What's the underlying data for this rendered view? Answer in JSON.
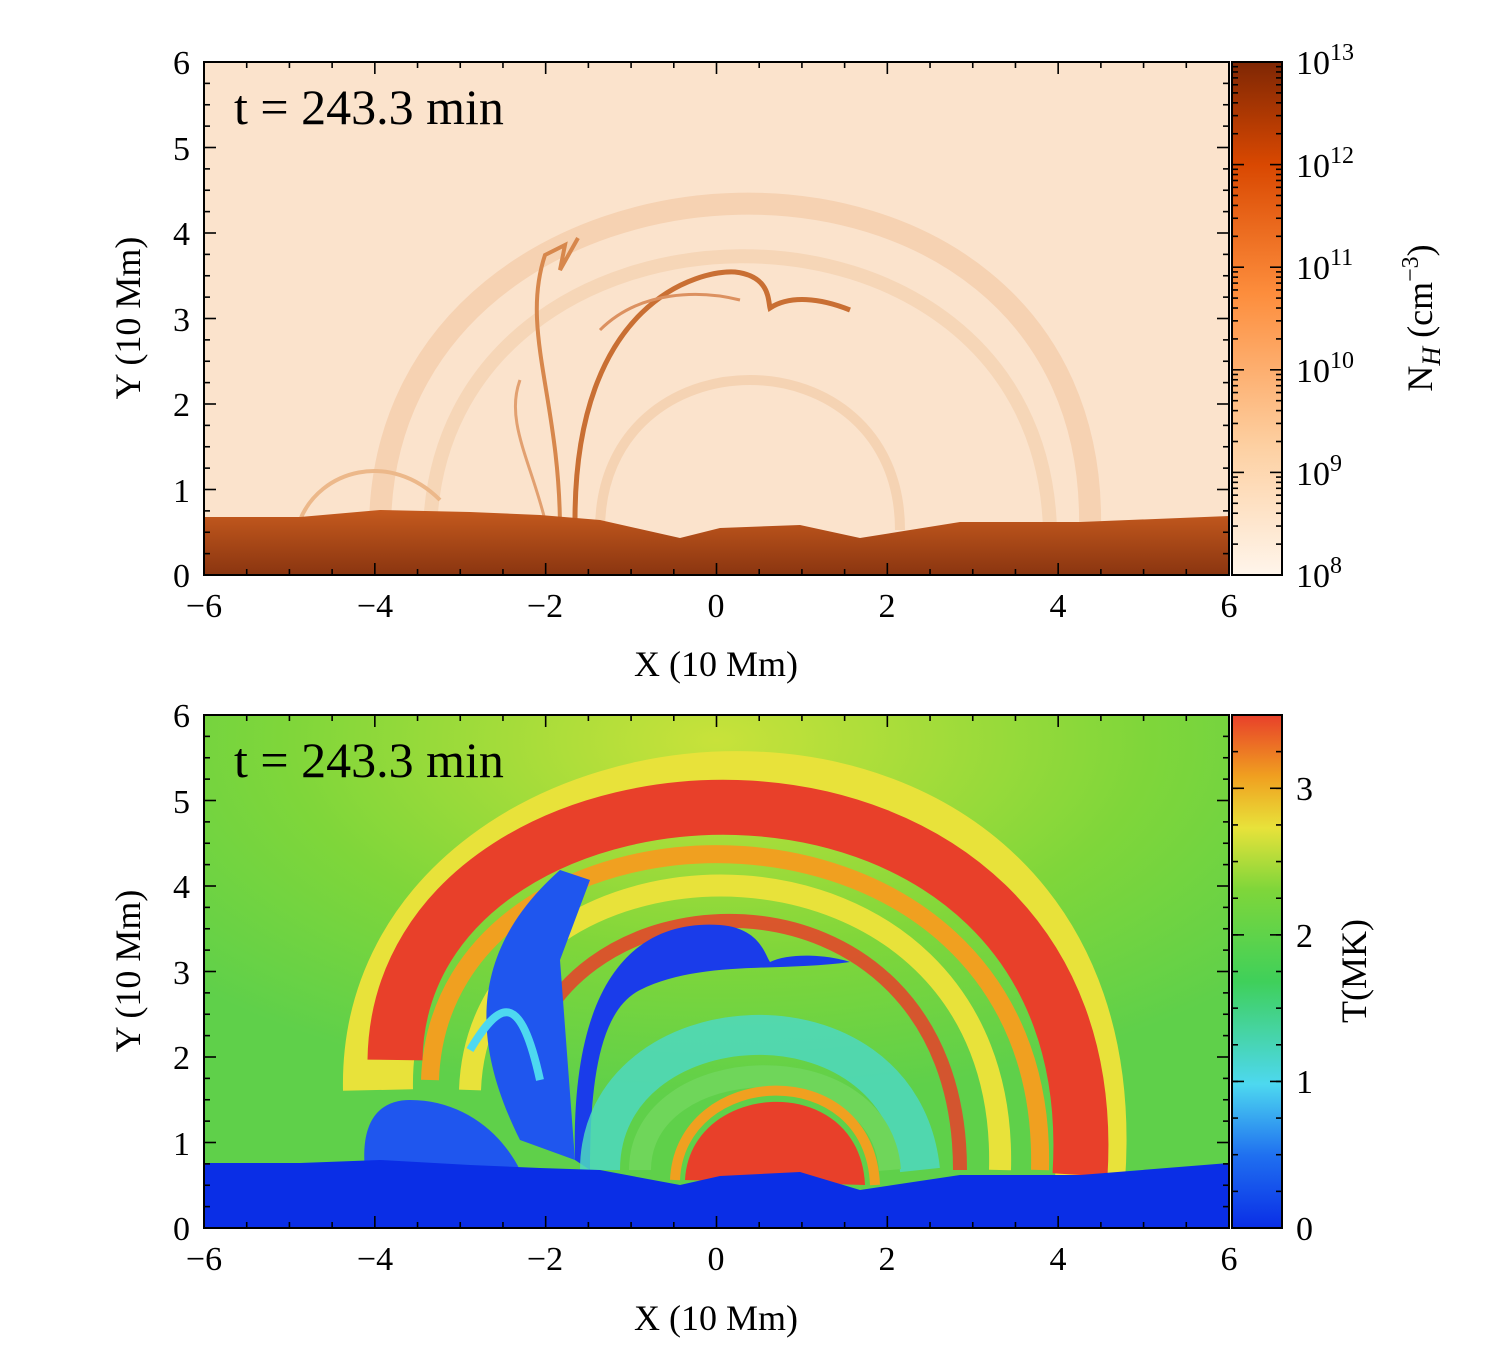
{
  "chart_data": [
    {
      "type": "heatmap",
      "quantity": "hydrogen number density",
      "annotation": "t = 243.3 min",
      "xlabel": "X (10 Mm)",
      "ylabel": "Y (10 Mm)",
      "xlim": [
        -6,
        6
      ],
      "ylim": [
        0,
        6
      ],
      "xticks": [
        "−6",
        "−4",
        "−2",
        "0",
        "2",
        "4",
        "6"
      ],
      "yticks": [
        "0",
        "1",
        "2",
        "3",
        "4",
        "5",
        "6"
      ],
      "colorbar": {
        "label": "N_H (cm^-3)",
        "label_base": "N",
        "label_sub": "H",
        "label_unit": " (cm",
        "label_exp": "−3",
        "label_close": ")",
        "scale": "log",
        "range": [
          100000000.0,
          10000000000000.0
        ],
        "tick_base": "10",
        "tick_exponents": [
          "8",
          "9",
          "10",
          "11",
          "12",
          "13"
        ],
        "colormap": "Oranges",
        "colors": [
          "#fff5eb",
          "#fdd0a2",
          "#fd8d3c",
          "#d94801",
          "#7f2704"
        ]
      },
      "features": {
        "dense_layer_top_y": 0.7,
        "background_density": "1e9",
        "flux_rope_center": [
          0.6,
          3.15
        ],
        "flux_rope_strand_x": -1.8,
        "loop_span_x": [
          -4.0,
          4.4
        ]
      }
    },
    {
      "type": "heatmap",
      "quantity": "temperature",
      "annotation": "t = 243.3 min",
      "xlabel": "X (10 Mm)",
      "ylabel": "Y (10 Mm)",
      "xlim": [
        -6,
        6
      ],
      "ylim": [
        0,
        6
      ],
      "xticks": [
        "−6",
        "−4",
        "−2",
        "0",
        "2",
        "4",
        "6"
      ],
      "yticks": [
        "0",
        "1",
        "2",
        "3",
        "4",
        "5",
        "6"
      ],
      "colorbar": {
        "label": "T(MK)",
        "scale": "linear",
        "range": [
          0,
          3.5
        ],
        "ticks": [
          "0",
          "1",
          "2",
          "3"
        ],
        "colormap": "jet",
        "colors": [
          "#0a2ee6",
          "#1f6ff0",
          "#4dd8f0",
          "#3fd05a",
          "#7fd63a",
          "#e8e23a",
          "#f0a020",
          "#e8402a"
        ]
      },
      "features": {
        "cool_layer_top_y": 0.75,
        "background_T_MK": 2.0,
        "hot_outer_arcade_T_MK": 3.4,
        "cool_prominence_T_MK": 0.2,
        "hot_core_loop_center": [
          0.6,
          0.7
        ],
        "flux_rope_center": [
          0.6,
          3.2
        ]
      }
    }
  ]
}
